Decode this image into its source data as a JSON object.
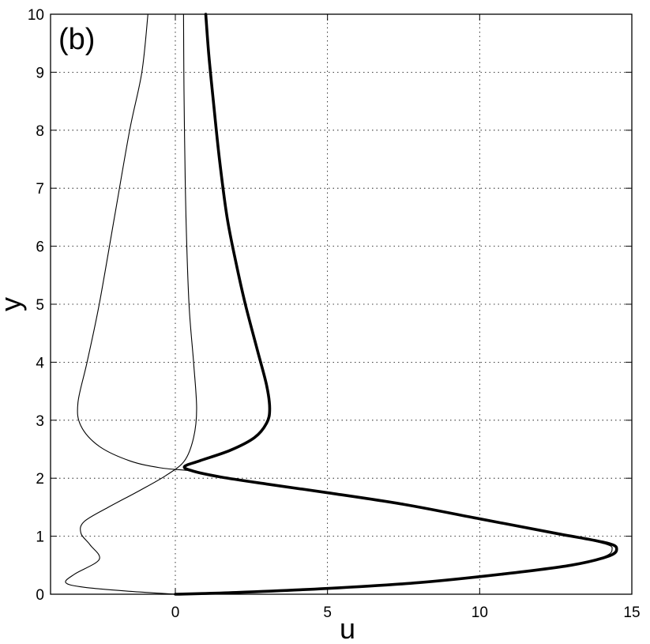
{
  "chart_data": {
    "type": "line",
    "panel_label": "(b)",
    "xlabel": "u",
    "ylabel": "y",
    "xlim": [
      -4.1,
      15
    ],
    "ylim": [
      0,
      10
    ],
    "xticks": [
      0,
      5,
      10,
      15
    ],
    "yticks": [
      0,
      1,
      2,
      3,
      4,
      5,
      6,
      7,
      8,
      9,
      10
    ],
    "xtick_labels": [
      "0",
      "5",
      "10",
      "15"
    ],
    "ytick_labels": [
      "0",
      "1",
      "2",
      "3",
      "4",
      "5",
      "6",
      "7",
      "8",
      "9",
      "10"
    ],
    "grid": true,
    "legend": "none",
    "series": [
      {
        "style": "thick",
        "color": "#000000",
        "points": [
          [
            0,
            0
          ],
          [
            2,
            0.03
          ],
          [
            5,
            0.1
          ],
          [
            8,
            0.2
          ],
          [
            10.8,
            0.35
          ],
          [
            13,
            0.5
          ],
          [
            14.2,
            0.65
          ],
          [
            14.5,
            0.77
          ],
          [
            14.2,
            0.88
          ],
          [
            12.5,
            1.05
          ],
          [
            10,
            1.3
          ],
          [
            7.5,
            1.55
          ],
          [
            5,
            1.75
          ],
          [
            3,
            1.9
          ],
          [
            1.5,
            2.02
          ],
          [
            0.6,
            2.12
          ],
          [
            0.3,
            2.2
          ],
          [
            0.8,
            2.3
          ],
          [
            1.8,
            2.48
          ],
          [
            2.6,
            2.7
          ],
          [
            3.0,
            2.95
          ],
          [
            3.1,
            3.2
          ],
          [
            3.0,
            3.6
          ],
          [
            2.7,
            4.2
          ],
          [
            2.3,
            5.0
          ],
          [
            2.0,
            5.7
          ],
          [
            1.7,
            6.5
          ],
          [
            1.45,
            7.5
          ],
          [
            1.25,
            8.5
          ],
          [
            1.1,
            9.3
          ],
          [
            1.0,
            10
          ]
        ]
      },
      {
        "style": "thin",
        "color": "#000000",
        "points": [
          [
            0,
            0
          ],
          [
            2,
            0.03
          ],
          [
            5,
            0.1
          ],
          [
            8,
            0.2
          ],
          [
            10.8,
            0.35
          ],
          [
            13,
            0.5
          ],
          [
            14.1,
            0.65
          ],
          [
            14.35,
            0.77
          ],
          [
            14.1,
            0.87
          ],
          [
            12.5,
            1.05
          ],
          [
            10,
            1.3
          ],
          [
            7.5,
            1.55
          ],
          [
            5,
            1.75
          ],
          [
            3,
            1.9
          ],
          [
            1.5,
            2.02
          ],
          [
            0.6,
            2.12
          ],
          [
            -0.5,
            2.18
          ],
          [
            -1.5,
            2.3
          ],
          [
            -2.5,
            2.55
          ],
          [
            -3.1,
            2.9
          ],
          [
            -3.2,
            3.3
          ],
          [
            -2.9,
            4.0
          ],
          [
            -2.5,
            5.0
          ],
          [
            -2.0,
            6.5
          ],
          [
            -1.5,
            8.0
          ],
          [
            -1.1,
            9.0
          ],
          [
            -0.9,
            10
          ]
        ]
      },
      {
        "style": "thin",
        "color": "#000000",
        "points": [
          [
            0,
            0
          ],
          [
            -1.5,
            0.05
          ],
          [
            -3,
            0.12
          ],
          [
            -3.6,
            0.2
          ],
          [
            -3.3,
            0.35
          ],
          [
            -2.5,
            0.6
          ],
          [
            -2.8,
            0.85
          ],
          [
            -3.1,
            1.05
          ],
          [
            -3.0,
            1.25
          ],
          [
            -2.2,
            1.5
          ],
          [
            -1.2,
            1.78
          ],
          [
            -0.3,
            2.05
          ],
          [
            0.3,
            2.3
          ],
          [
            0.6,
            2.7
          ],
          [
            0.7,
            3.2
          ],
          [
            0.6,
            4.0
          ],
          [
            0.45,
            5.0
          ],
          [
            0.35,
            6.5
          ],
          [
            0.3,
            8.0
          ],
          [
            0.28,
            9.0
          ],
          [
            0.27,
            10
          ]
        ]
      }
    ]
  }
}
